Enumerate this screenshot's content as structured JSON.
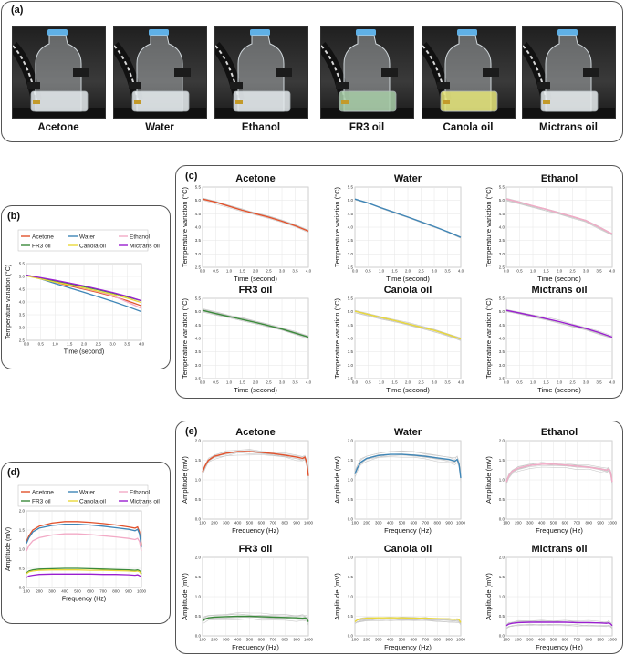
{
  "panel_labels": {
    "a": "(a)",
    "b": "(b)",
    "c": "(c)",
    "d": "(d)",
    "e": "(e)"
  },
  "photos": [
    {
      "label": "Acetone",
      "liquid_color": "#e6ecef"
    },
    {
      "label": "Water",
      "liquid_color": "#e8eef1"
    },
    {
      "label": "Ethanol",
      "liquid_color": "#e6ecef"
    },
    {
      "label": "FR3 oil",
      "liquid_color": "#a9cfa9"
    },
    {
      "label": "Canola oil",
      "liquid_color": "#e6e67a"
    },
    {
      "label": "Mictrans oil",
      "liquid_color": "#e9eef0"
    }
  ],
  "colors": {
    "Acetone": "#e2522c",
    "Water": "#3f86b7",
    "Ethanol": "#f2aac6",
    "FR3 oil": "#3b8a3b",
    "Canola oil": "#e9d83a",
    "Mictrans oil": "#9a1fcf"
  },
  "chart_data": [
    {
      "id": "temp_combined",
      "type": "line",
      "xlabel": "Time (second)",
      "ylabel": "Temperature variation (°C)",
      "xlim": [
        0,
        4.0
      ],
      "ylim": [
        2.5,
        5.5
      ],
      "xticks": [
        "0.0",
        "0.5",
        "1.0",
        "1.5",
        "2.0",
        "2.5",
        "3.0",
        "3.5",
        "4.0"
      ],
      "yticks": [
        "2.5",
        "3.0",
        "3.5",
        "4.0",
        "4.5",
        "5.0",
        "5.5"
      ],
      "legend": [
        "Acetone",
        "Water",
        "Ethanol",
        "FR3 oil",
        "Canola oil",
        "Mictrans oil"
      ],
      "x": [
        0,
        0.5,
        1,
        1.5,
        2,
        2.5,
        3,
        3.5,
        4
      ],
      "series": [
        {
          "name": "Acetone",
          "values": [
            5.05,
            4.93,
            4.78,
            4.63,
            4.5,
            4.37,
            4.22,
            4.05,
            3.85
          ]
        },
        {
          "name": "Water",
          "values": [
            5.05,
            4.9,
            4.72,
            4.55,
            4.38,
            4.2,
            4.02,
            3.83,
            3.62
          ]
        },
        {
          "name": "Ethanol",
          "values": [
            5.05,
            4.93,
            4.8,
            4.67,
            4.53,
            4.4,
            4.25,
            4.0,
            3.75
          ]
        },
        {
          "name": "FR3 oil",
          "values": [
            5.05,
            4.93,
            4.82,
            4.71,
            4.6,
            4.48,
            4.35,
            4.2,
            4.05
          ]
        },
        {
          "name": "Canola oil",
          "values": [
            5.02,
            4.9,
            4.78,
            4.67,
            4.55,
            4.42,
            4.3,
            4.15,
            3.98
          ]
        },
        {
          "name": "Mictrans oil",
          "values": [
            5.05,
            4.95,
            4.85,
            4.74,
            4.63,
            4.5,
            4.37,
            4.22,
            4.05
          ]
        }
      ]
    },
    {
      "id": "temp_small_multiples",
      "type": "line",
      "xlabel": "Time (second)",
      "ylabel": "Temperature variation (°C)",
      "xlim": [
        0,
        4.0
      ],
      "ylim": [
        2.5,
        5.5
      ],
      "xticks": [
        "0.0",
        "0.5",
        "1.0",
        "1.5",
        "2.0",
        "2.5",
        "3.0",
        "3.5",
        "4.0"
      ],
      "yticks": [
        "2.5",
        "3.0",
        "3.5",
        "4.0",
        "4.5",
        "5.0",
        "5.5"
      ],
      "panels": [
        "Acetone",
        "Water",
        "Ethanol",
        "FR3 oil",
        "Canola oil",
        "Mictrans oil"
      ],
      "note": "each panel shows the mean series of the combined chart plus gray repeated-measurement traces"
    },
    {
      "id": "amp_combined",
      "type": "line",
      "xlabel": "Frequency (Hz)",
      "ylabel": "Amplitude (mV)",
      "xlim": [
        100,
        1000
      ],
      "ylim": [
        0,
        2.0
      ],
      "xticks": [
        "100",
        "200",
        "300",
        "400",
        "500",
        "600",
        "700",
        "800",
        "900",
        "1000"
      ],
      "yticks": [
        "0.0",
        "0.5",
        "1.0",
        "1.5",
        "2.0"
      ],
      "legend": [
        "Acetone",
        "Water",
        "Ethanol",
        "FR3 oil",
        "Canola oil",
        "Mictrans oil"
      ],
      "x": [
        100,
        120,
        150,
        200,
        300,
        400,
        500,
        600,
        700,
        800,
        900,
        950,
        970,
        985,
        1000
      ],
      "series": [
        {
          "name": "Acetone",
          "values": [
            1.2,
            1.35,
            1.5,
            1.6,
            1.68,
            1.72,
            1.72,
            1.7,
            1.67,
            1.63,
            1.58,
            1.55,
            1.58,
            1.45,
            1.1
          ]
        },
        {
          "name": "Water",
          "values": [
            1.15,
            1.3,
            1.45,
            1.55,
            1.62,
            1.65,
            1.65,
            1.63,
            1.6,
            1.56,
            1.52,
            1.48,
            1.52,
            1.4,
            1.05
          ]
        },
        {
          "name": "Ethanol",
          "values": [
            0.95,
            1.1,
            1.22,
            1.3,
            1.37,
            1.4,
            1.4,
            1.38,
            1.35,
            1.32,
            1.28,
            1.25,
            1.28,
            1.2,
            0.95
          ]
        },
        {
          "name": "FR3 oil",
          "values": [
            0.38,
            0.43,
            0.46,
            0.48,
            0.49,
            0.5,
            0.5,
            0.49,
            0.48,
            0.47,
            0.46,
            0.45,
            0.46,
            0.44,
            0.36
          ]
        },
        {
          "name": "Canola oil",
          "values": [
            0.36,
            0.41,
            0.43,
            0.45,
            0.46,
            0.46,
            0.46,
            0.45,
            0.45,
            0.44,
            0.43,
            0.42,
            0.43,
            0.41,
            0.34
          ]
        },
        {
          "name": "Mictrans oil",
          "values": [
            0.26,
            0.3,
            0.32,
            0.34,
            0.35,
            0.35,
            0.35,
            0.35,
            0.34,
            0.34,
            0.33,
            0.32,
            0.33,
            0.31,
            0.26
          ]
        }
      ]
    },
    {
      "id": "amp_small_multiples",
      "type": "line",
      "xlabel": "Frequency (Hz)",
      "ylabel": "Amplitude (mV)",
      "xlim": [
        100,
        1000
      ],
      "ylim": [
        0,
        2.0
      ],
      "xticks": [
        "100",
        "200",
        "300",
        "400",
        "500",
        "600",
        "700",
        "800",
        "900",
        "1000"
      ],
      "yticks": [
        "0.0",
        "0.5",
        "1.0",
        "1.5",
        "2.0"
      ],
      "panels": [
        "Acetone",
        "Water",
        "Ethanol",
        "FR3 oil",
        "Canola oil",
        "Mictrans oil"
      ],
      "note": "each panel shows the mean series of the combined chart plus gray repeated-measurement traces"
    }
  ]
}
